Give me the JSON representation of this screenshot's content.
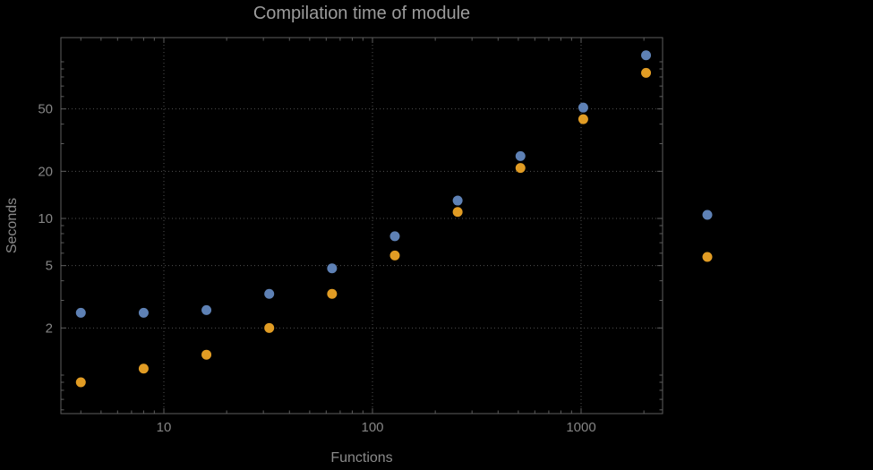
{
  "colors": {
    "background": "#000000",
    "frame": "#5e5e5e",
    "grid": "#4f4f4f",
    "text": "#858585",
    "title_text": "#9c9c9c",
    "series1": "#5E81B5",
    "series2": "#E19C24"
  },
  "chart_data": {
    "type": "scatter",
    "title": "Compilation time of module",
    "xlabel": "Functions",
    "ylabel": "Seconds",
    "x_scale": "log",
    "y_scale": "log",
    "xlim": [
      3.2,
      2460
    ],
    "ylim": [
      0.57,
      140
    ],
    "grid": "dotted",
    "x": [
      4,
      8,
      16,
      32,
      64,
      128,
      256,
      512,
      1024,
      2048
    ],
    "series": [
      {
        "name": "series-1-blue",
        "color": "#5E81B5",
        "values": [
          2.5,
          2.5,
          2.6,
          3.3,
          4.8,
          7.7,
          13,
          25,
          51,
          110
        ]
      },
      {
        "name": "series-2-orange",
        "color": "#E19C24",
        "values": [
          0.9,
          1.1,
          1.35,
          2.0,
          3.3,
          5.8,
          11,
          21,
          43,
          85
        ]
      }
    ],
    "x_ticks": [
      {
        "value": 10,
        "label": "10"
      },
      {
        "value": 100,
        "label": "100"
      },
      {
        "value": 1000,
        "label": "1000"
      }
    ],
    "y_ticks": [
      {
        "value": 2,
        "label": "2"
      },
      {
        "value": 5,
        "label": "5"
      },
      {
        "value": 10,
        "label": "10"
      },
      {
        "value": 20,
        "label": "20"
      },
      {
        "value": 50,
        "label": "50"
      }
    ],
    "legend_markers": [
      {
        "color": "#5E81B5",
        "label": ""
      },
      {
        "color": "#E19C24",
        "label": ""
      }
    ]
  }
}
